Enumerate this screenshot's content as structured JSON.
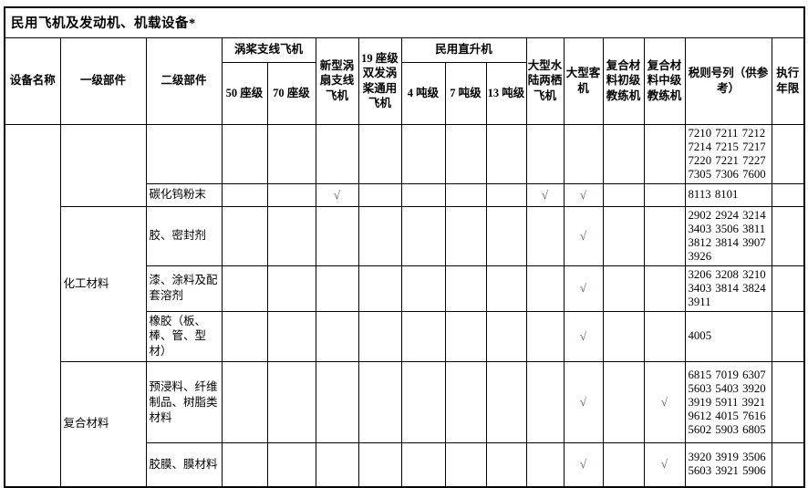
{
  "title": "民用飞机及发动机、机载设备*",
  "check_symbol": "√",
  "header": {
    "device_name": "设备名称",
    "level1": "一级部件",
    "level2": "二级部件",
    "turboprop_group": "涡桨支线飞机",
    "seat50": "50 座级",
    "seat70": "70 座级",
    "new_turbofan": "新型涡扇支线飞机",
    "seat19": "19 座级双发涡桨通用飞机",
    "helicopter_group": "民用直升机",
    "ton4": "4 吨级",
    "ton7": "7 吨级",
    "ton13": "13 吨级",
    "amphibious": "大型水陆两栖飞机",
    "large_passenger": "大型客机",
    "composite_primary": "复合材料初级教练机",
    "composite_intermediate": "复合材料中级教练机",
    "tariff": "税则号列（供参考）",
    "years": "执行年限"
  },
  "body": {
    "device_cell": "",
    "groups": [
      {
        "name": "",
        "rows": [
          {
            "level2": "",
            "checks": [],
            "tariff": "7210 7211 7212 7214 7215 7217 7220 7221 7227 7305 7306 7600",
            "years": ""
          },
          {
            "level2": "碳化钨粉末",
            "checks": [
              "new_turbofan",
              "amphibious",
              "large_passenger"
            ],
            "tariff": "8113 8101",
            "years": ""
          }
        ]
      },
      {
        "name": "化工材料",
        "rows": [
          {
            "level2": "胶、密封剂",
            "checks": [
              "large_passenger"
            ],
            "tariff": "2902 2924 3214 3403 3506 3811 3812 3814 3907 3926",
            "years": ""
          },
          {
            "level2": "漆、涂料及配套溶剂",
            "checks": [
              "large_passenger"
            ],
            "tariff": "3206 3208 3210 3403 3814 3824 3911",
            "years": ""
          },
          {
            "level2": "橡胶（板、棒、管、型材）",
            "checks": [
              "large_passenger"
            ],
            "tariff": "4005",
            "years": ""
          }
        ]
      },
      {
        "name": "复合材料",
        "rows": [
          {
            "level2": "预浸料、纤维制品、树脂类材料",
            "checks": [
              "large_passenger",
              "composite_intermediate"
            ],
            "tariff": "6815 7019 6307 5603 5403 3920 3919 5911 3921 9612 4015 7616 5602 5903 6805",
            "years": ""
          },
          {
            "level2": "胶膜、膜材料",
            "checks": [
              "large_passenger",
              "composite_intermediate"
            ],
            "tariff": "3920 3919 3506 5603 3921 5906",
            "years": ""
          }
        ]
      }
    ]
  }
}
